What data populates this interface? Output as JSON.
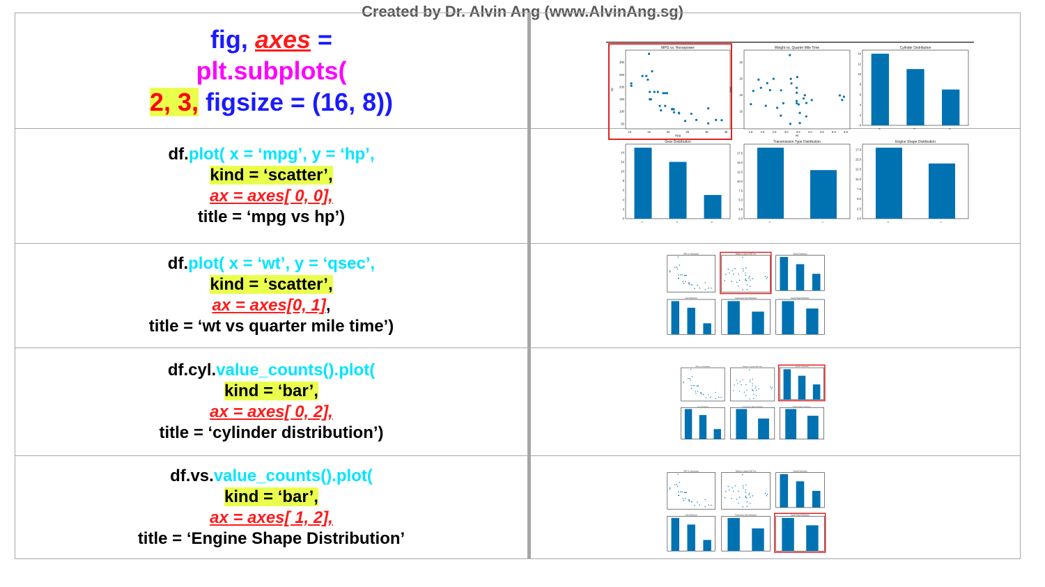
{
  "credit": "Created by Dr. Alvin Ang (www.AlvinAng.sg)",
  "header": {
    "fig": "fig,",
    "axes": "axes",
    "eq": " =",
    "plt": "plt.subplots(",
    "args": "2, 3,",
    "figsize": " figsize = (16, 8))"
  },
  "rows": [
    {
      "l1_a": "df.",
      "l1_b": "plot( x = ‘mpg’, y = ‘hp’,",
      "kind": "kind = ‘scatter’,",
      "ax": "ax = axes[ 0, 0],",
      "ax_tail": "",
      "title": "title = ‘mpg vs hp’)"
    },
    {
      "l1_a": "df.",
      "l1_b": "plot( x = ‘wt’, y = ‘qsec’,",
      "kind": "kind = ‘scatter’,",
      "ax": "ax = axes[0, 1]",
      "ax_tail": ",",
      "title": "title = ‘wt vs quarter mile time’)"
    },
    {
      "l1_a": "df.cyl.",
      "l1_b": "value_counts().plot(",
      "kind": "kind = ‘bar’,",
      "ax": "ax = axes[ 0, 2],",
      "ax_tail": "",
      "title": "title = ‘cylinder distribution’)"
    },
    {
      "l1_a": "df.vs.",
      "l1_b": "value_counts().plot(",
      "kind": "kind = ‘bar’,",
      "ax": "ax = axes[ 1, 2],",
      "ax_tail": "",
      "title": "title = ‘Engine Shape Distribution’"
    }
  ],
  "colors": {
    "bar": "#0072b2",
    "highlight": "#eaff4c",
    "frame_red": "#e02020"
  },
  "chart_data": [
    {
      "type": "scatter",
      "title": "MPG vs. Horsepower",
      "xlabel": "mpg",
      "ylabel": "hp",
      "x_ticks": [
        "10",
        "15",
        "20",
        "25",
        "30",
        "35"
      ],
      "y_ticks": [
        "50",
        "100",
        "150",
        "200",
        "250",
        "300"
      ],
      "xlim": [
        10,
        35
      ],
      "ylim": [
        40,
        340
      ],
      "x": [
        21,
        21,
        22.8,
        21.4,
        18.7,
        18.1,
        14.3,
        24.4,
        22.8,
        19.2,
        17.8,
        16.4,
        17.3,
        15.2,
        10.4,
        10.4,
        14.7,
        32.4,
        30.4,
        33.9,
        21.5,
        15.5,
        15.2,
        13.3,
        19.2,
        27.3,
        26,
        30.4,
        15.8,
        19.7,
        15,
        21.4
      ],
      "y": [
        110,
        110,
        93,
        110,
        175,
        105,
        245,
        62,
        95,
        123,
        123,
        180,
        180,
        180,
        205,
        215,
        230,
        66,
        52,
        65,
        97,
        150,
        150,
        245,
        175,
        66,
        91,
        113,
        264,
        175,
        335,
        109
      ]
    },
    {
      "type": "scatter",
      "title": "Weight vs. Quarter Mile Time",
      "xlabel": "wt",
      "ylabel": "qsec",
      "x_ticks": [
        "1.5",
        "2.0",
        "2.5",
        "3.0",
        "3.5",
        "4.0",
        "4.5",
        "5.0",
        "5.5"
      ],
      "y_ticks": [
        "16",
        "18",
        "20",
        "22"
      ],
      "xlim": [
        1.4,
        5.5
      ],
      "ylim": [
        14.2,
        23.2
      ],
      "x": [
        2.62,
        2.875,
        2.32,
        3.215,
        3.44,
        3.46,
        3.57,
        3.19,
        3.15,
        3.44,
        3.44,
        4.07,
        3.73,
        3.78,
        5.25,
        5.424,
        5.345,
        2.2,
        1.615,
        1.835,
        2.465,
        3.52,
        3.435,
        3.84,
        3.845,
        1.935,
        2.14,
        1.513,
        3.17,
        2.77,
        3.57,
        2.78
      ],
      "y": [
        16.46,
        17.02,
        18.61,
        19.44,
        17.02,
        20.22,
        15.84,
        20,
        22.9,
        18.3,
        18.9,
        17.4,
        17.6,
        18,
        17.98,
        17.82,
        17.42,
        19.47,
        18.52,
        19.9,
        20.01,
        16.87,
        17.3,
        15.41,
        17.05,
        18.9,
        16.7,
        16.9,
        14.5,
        15.5,
        14.6,
        18.6
      ]
    },
    {
      "type": "bar",
      "title": "Cylinder Distribution",
      "categories": [
        "8",
        "4",
        "6"
      ],
      "values": [
        14,
        11,
        7
      ],
      "y_ticks": [
        "0",
        "2",
        "4",
        "6",
        "8",
        "10",
        "12",
        "14"
      ],
      "ylim": [
        0,
        14.7
      ]
    },
    {
      "type": "bar",
      "title": "Gear Distribution",
      "categories": [
        "3",
        "4",
        "5"
      ],
      "values": [
        15,
        12,
        5
      ],
      "y_ticks": [
        "0",
        "2",
        "4",
        "6",
        "8",
        "10",
        "12",
        "14"
      ],
      "ylim": [
        0,
        15.75
      ]
    },
    {
      "type": "bar",
      "title": "Transmission Type Distribution",
      "categories": [
        "0",
        "1"
      ],
      "values": [
        19,
        13
      ],
      "y_ticks": [
        "0.0",
        "2.5",
        "5.0",
        "7.5",
        "10.0",
        "12.5",
        "15.0",
        "17.5"
      ],
      "ylim": [
        0,
        19.95
      ]
    },
    {
      "type": "bar",
      "title": "Engine Shape Distribution",
      "categories": [
        "0",
        "1"
      ],
      "values": [
        18,
        14
      ],
      "y_ticks": [
        "0.0",
        "2.5",
        "5.0",
        "7.5",
        "10.0",
        "12.5",
        "15.0",
        "17.5"
      ],
      "ylim": [
        0,
        18.9
      ]
    }
  ]
}
